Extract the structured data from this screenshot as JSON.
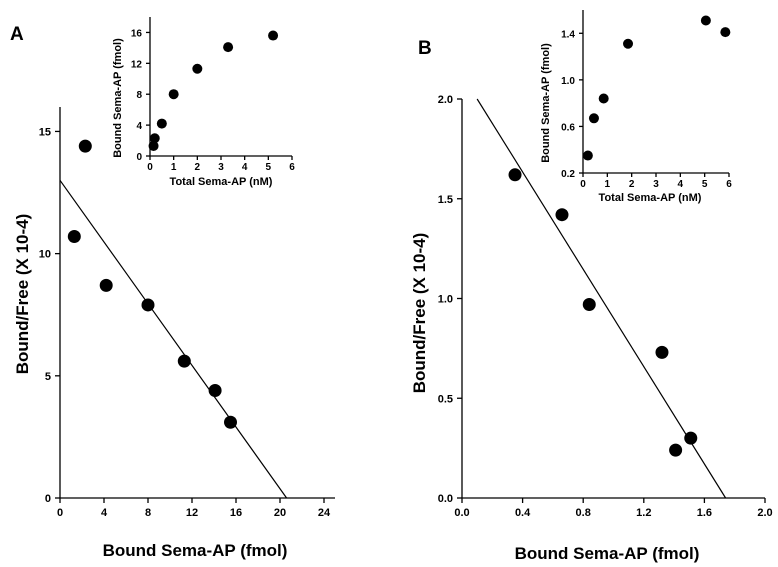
{
  "chart_data": [
    {
      "type": "scatter",
      "panel_label": "A",
      "xlabel": "Bound Sema-AP (fmol)",
      "ylabel": "Bound/Free  (X 10-4)",
      "xlim": [
        0,
        25
      ],
      "ylim": [
        0,
        16
      ],
      "x_ticks": [
        "0",
        "4",
        "8",
        "12",
        "16",
        "20",
        "24"
      ],
      "x_tick_values": [
        0,
        4,
        8,
        12,
        16,
        20,
        24
      ],
      "y_ticks": [
        "0",
        "5",
        "10",
        "15"
      ],
      "y_tick_values": [
        0,
        5,
        10,
        15
      ],
      "points": [
        {
          "x": 1.3,
          "y": 10.7
        },
        {
          "x": 2.3,
          "y": 14.4
        },
        {
          "x": 4.2,
          "y": 8.7
        },
        {
          "x": 8.0,
          "y": 7.9
        },
        {
          "x": 11.3,
          "y": 5.6
        },
        {
          "x": 14.1,
          "y": 4.4
        },
        {
          "x": 15.5,
          "y": 3.1
        }
      ],
      "fit_line": {
        "x": [
          0,
          20.6
        ],
        "y": [
          13.0,
          0
        ]
      },
      "inset": {
        "type": "scatter",
        "xlabel": "Total Sema-AP (nM)",
        "ylabel": "Bound  Sema-AP  (fmol)",
        "xlim": [
          0,
          6
        ],
        "ylim": [
          0,
          18
        ],
        "x_ticks": [
          "0",
          "1",
          "2",
          "3",
          "4",
          "5",
          "6"
        ],
        "x_tick_values": [
          0,
          1,
          2,
          3,
          4,
          5,
          6
        ],
        "y_ticks": [
          "0",
          "4",
          "8",
          "12",
          "16"
        ],
        "y_tick_values": [
          0,
          4,
          8,
          12,
          16
        ],
        "points": [
          {
            "x": 0.15,
            "y": 1.3
          },
          {
            "x": 0.2,
            "y": 2.3
          },
          {
            "x": 0.5,
            "y": 4.2
          },
          {
            "x": 1.0,
            "y": 8.0
          },
          {
            "x": 2.0,
            "y": 11.3
          },
          {
            "x": 3.3,
            "y": 14.1
          },
          {
            "x": 5.2,
            "y": 15.6
          }
        ]
      }
    },
    {
      "type": "scatter",
      "panel_label": "B",
      "xlabel": "Bound Sema-AP (fmol)",
      "ylabel": "Bound/Free  (X 10-4)",
      "xlim": [
        0,
        2.0
      ],
      "ylim": [
        0,
        2.0
      ],
      "x_ticks": [
        "0.0",
        "0.4",
        "0.8",
        "1.2",
        "1.6",
        "2.0"
      ],
      "x_tick_values": [
        0,
        0.4,
        0.8,
        1.2,
        1.6,
        2.0
      ],
      "y_ticks": [
        "0.0",
        "0.5",
        "1.0",
        "1.5",
        "2.0"
      ],
      "y_tick_values": [
        0,
        0.5,
        1.0,
        1.5,
        2.0
      ],
      "points": [
        {
          "x": 0.35,
          "y": 1.62
        },
        {
          "x": 0.66,
          "y": 1.42
        },
        {
          "x": 0.84,
          "y": 0.97
        },
        {
          "x": 1.32,
          "y": 0.73
        },
        {
          "x": 1.41,
          "y": 0.24
        },
        {
          "x": 1.51,
          "y": 0.3
        }
      ],
      "fit_line": {
        "x": [
          0.1,
          1.74
        ],
        "y": [
          2.0,
          0
        ]
      },
      "inset": {
        "type": "scatter",
        "xlabel": "Total Sema-AP (nM)",
        "ylabel": "Bound  Sema-AP  (fmol)",
        "xlim": [
          0,
          6
        ],
        "ylim": [
          0.2,
          1.6
        ],
        "x_ticks": [
          "0",
          "1",
          "2",
          "3",
          "4",
          "5",
          "6"
        ],
        "x_tick_values": [
          0,
          1,
          2,
          3,
          4,
          5,
          6
        ],
        "y_ticks": [
          "0.2",
          "0.6",
          "1.0",
          "1.4"
        ],
        "y_tick_values": [
          0.2,
          0.6,
          1.0,
          1.4
        ],
        "points": [
          {
            "x": 0.2,
            "y": 0.35
          },
          {
            "x": 0.45,
            "y": 0.67
          },
          {
            "x": 0.85,
            "y": 0.84
          },
          {
            "x": 1.85,
            "y": 1.31
          },
          {
            "x": 5.05,
            "y": 1.51
          },
          {
            "x": 5.85,
            "y": 1.41
          }
        ]
      }
    }
  ]
}
